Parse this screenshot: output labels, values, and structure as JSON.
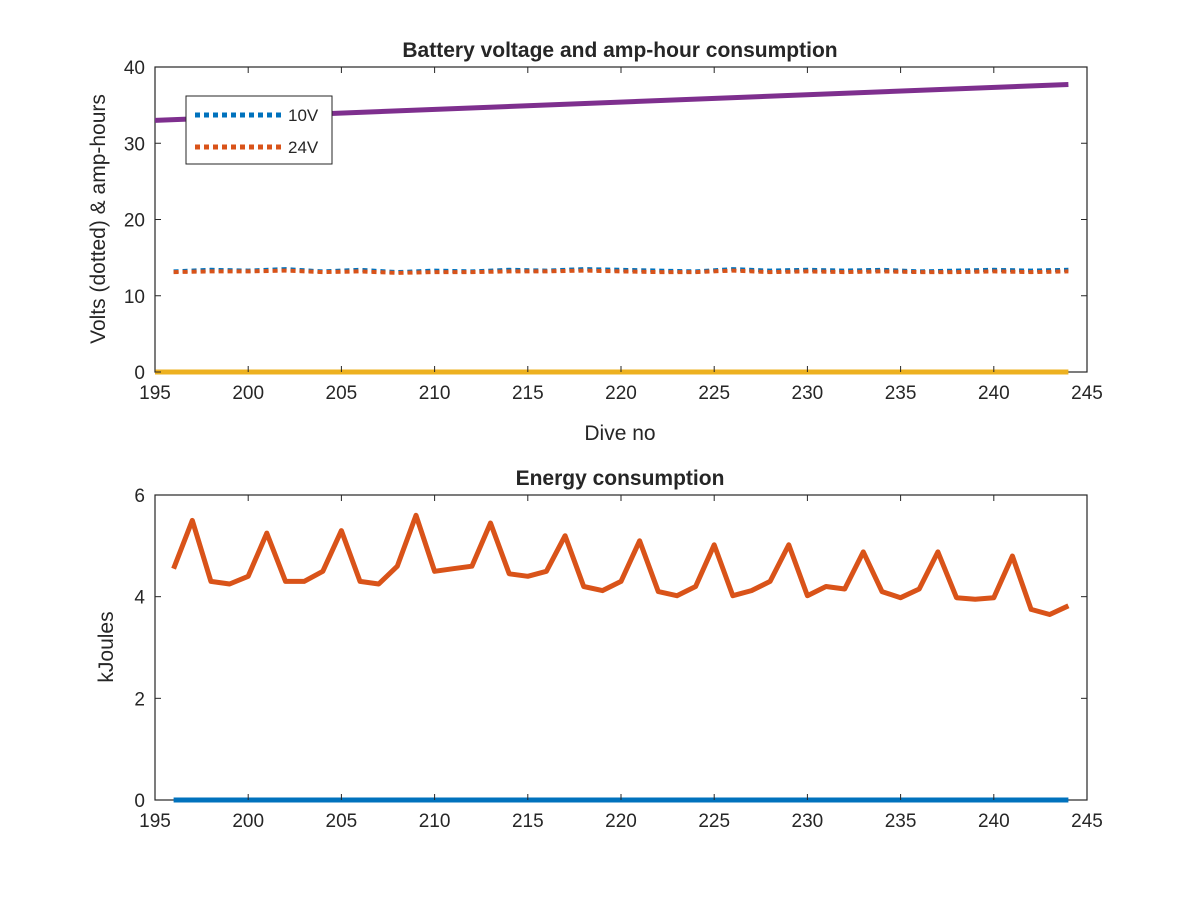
{
  "chart_data": [
    {
      "type": "line",
      "title": "Battery voltage and amp-hour consumption",
      "xlabel": "Dive no",
      "ylabel": "Volts (dotted) & amp-hours",
      "xlim": [
        195,
        245
      ],
      "ylim": [
        0,
        40
      ],
      "xticks": [
        "195",
        "200",
        "205",
        "210",
        "215",
        "220",
        "225",
        "230",
        "235",
        "240",
        "245"
      ],
      "yticks": [
        "0",
        "10",
        "20",
        "30",
        "40"
      ],
      "legend_position": "top-left",
      "grid": false,
      "colors": {
        "blue": "#0072BD",
        "orange": "#D95319",
        "yellow": "#EDB120",
        "purple": "#7E2F8E"
      },
      "series": [
        {
          "name": "10V",
          "style": "dotted",
          "color": "#0072BD",
          "x": [
            196,
            198,
            200,
            202,
            204,
            206,
            208,
            210,
            212,
            214,
            216,
            218,
            220,
            222,
            224,
            226,
            228,
            230,
            232,
            234,
            236,
            238,
            240,
            242,
            244
          ],
          "y": [
            13.2,
            13.4,
            13.3,
            13.5,
            13.2,
            13.4,
            13.1,
            13.3,
            13.2,
            13.4,
            13.3,
            13.5,
            13.4,
            13.3,
            13.2,
            13.5,
            13.3,
            13.4,
            13.3,
            13.4,
            13.2,
            13.3,
            13.4,
            13.3,
            13.4
          ]
        },
        {
          "name": "24V",
          "style": "dotted",
          "color": "#D95319",
          "x": [
            196,
            198,
            200,
            202,
            204,
            206,
            208,
            210,
            212,
            214,
            216,
            218,
            220,
            222,
            224,
            226,
            228,
            230,
            232,
            234,
            236,
            238,
            240,
            242,
            244
          ],
          "y": [
            13.1,
            13.2,
            13.2,
            13.3,
            13.1,
            13.2,
            13.0,
            13.1,
            13.1,
            13.2,
            13.2,
            13.3,
            13.2,
            13.1,
            13.1,
            13.3,
            13.1,
            13.2,
            13.1,
            13.2,
            13.1,
            13.1,
            13.2,
            13.1,
            13.2
          ]
        },
        {
          "style": "solid",
          "color": "#EDB120",
          "x": [
            195,
            244
          ],
          "y": [
            0,
            0
          ]
        },
        {
          "style": "solid",
          "color": "#7E2F8E",
          "x": [
            195,
            244
          ],
          "y": [
            33,
            37.7
          ]
        }
      ]
    },
    {
      "type": "line",
      "title": "Energy consumption",
      "xlabel": "",
      "ylabel": "kJoules",
      "xlim": [
        195,
        245
      ],
      "ylim": [
        0,
        6
      ],
      "xticks": [
        "195",
        "200",
        "205",
        "210",
        "215",
        "220",
        "225",
        "230",
        "235",
        "240",
        "245"
      ],
      "yticks": [
        "0",
        "2",
        "4",
        "6"
      ],
      "grid": false,
      "series": [
        {
          "style": "solid",
          "color": "#0072BD",
          "x": [
            196,
            244
          ],
          "y": [
            0,
            0
          ]
        },
        {
          "style": "solid",
          "color": "#D95319",
          "x": [
            196,
            197,
            198,
            199,
            200,
            201,
            202,
            203,
            204,
            205,
            206,
            207,
            208,
            209,
            210,
            211,
            212,
            213,
            214,
            215,
            216,
            217,
            218,
            219,
            220,
            221,
            222,
            223,
            224,
            225,
            226,
            227,
            228,
            229,
            230,
            231,
            232,
            233,
            234,
            235,
            236,
            237,
            238,
            239,
            240,
            241,
            242,
            243,
            244
          ],
          "y": [
            4.55,
            5.5,
            4.3,
            4.25,
            4.4,
            5.25,
            4.3,
            4.3,
            4.5,
            5.3,
            4.3,
            4.25,
            4.6,
            5.6,
            4.5,
            4.55,
            4.6,
            5.45,
            4.45,
            4.4,
            4.5,
            5.2,
            4.2,
            4.12,
            4.3,
            5.1,
            4.1,
            4.02,
            4.2,
            5.02,
            4.02,
            4.12,
            4.3,
            5.02,
            4.02,
            4.2,
            4.15,
            4.88,
            4.1,
            3.98,
            4.15,
            4.88,
            3.98,
            3.95,
            3.98,
            4.8,
            3.75,
            3.65,
            3.82
          ]
        }
      ]
    }
  ]
}
